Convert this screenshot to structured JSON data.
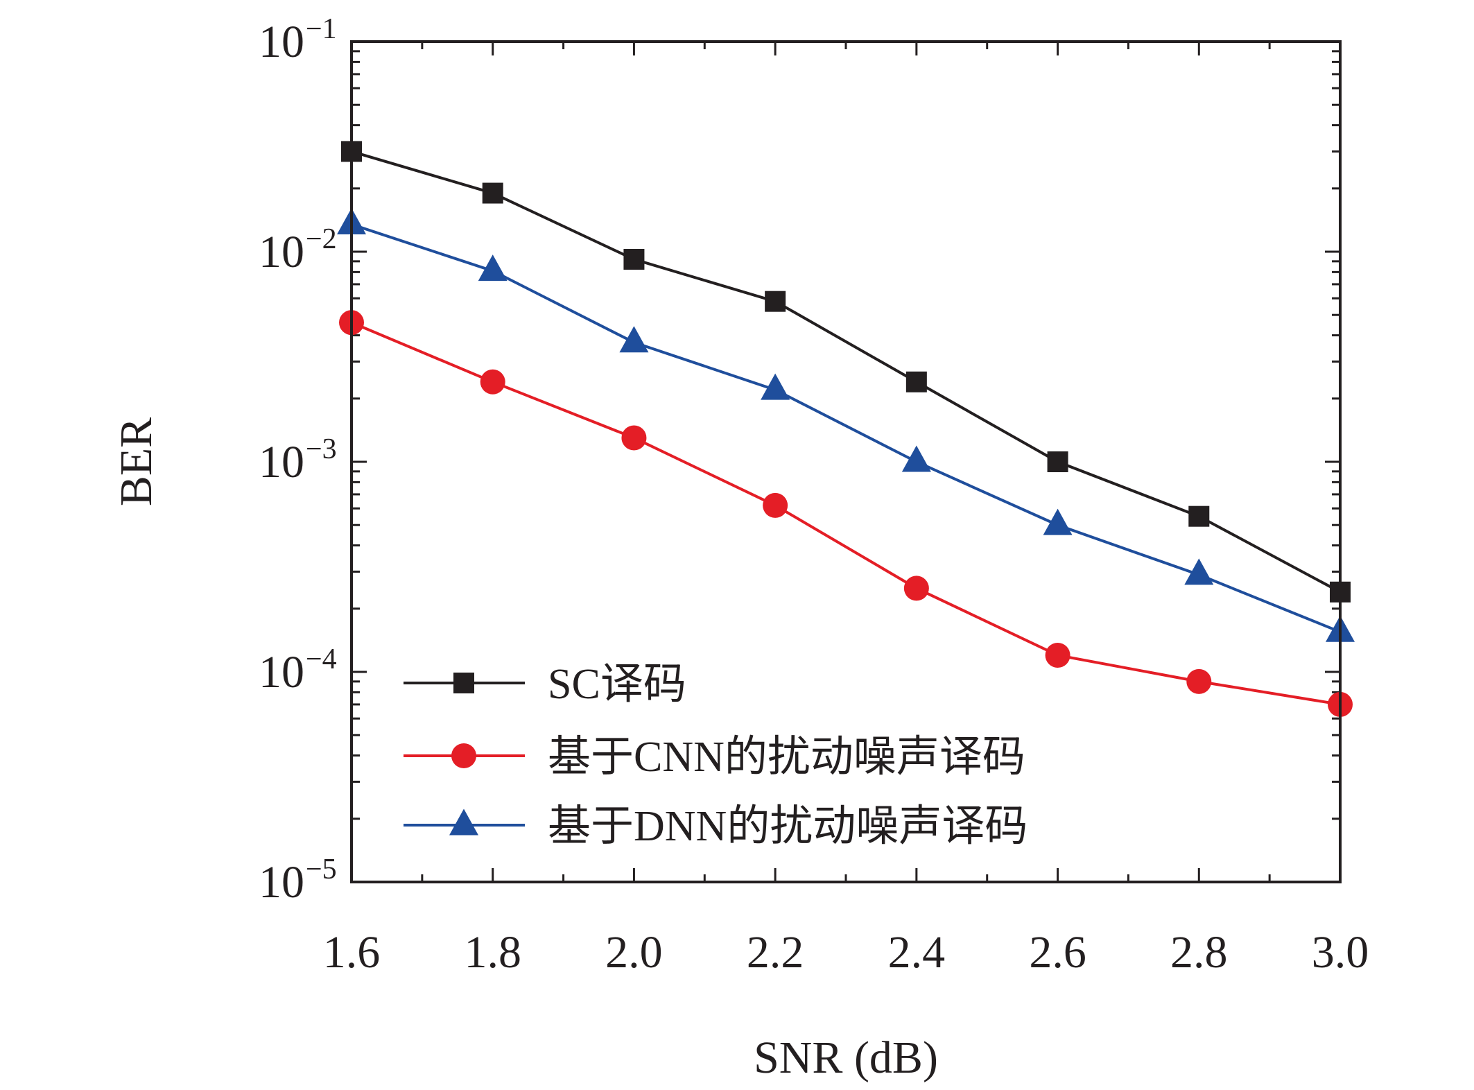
{
  "chart_data": {
    "type": "line",
    "xlabel": "SNR (dB)",
    "ylabel": "BER",
    "x": [
      1.6,
      1.8,
      2.0,
      2.2,
      2.4,
      2.6,
      2.8,
      3.0
    ],
    "x_tick_labels": [
      "1.6",
      "1.8",
      "2.0",
      "2.2",
      "2.4",
      "2.6",
      "2.8",
      "3.0"
    ],
    "xlim": [
      1.6,
      3.0
    ],
    "ylim": [
      1e-05,
      0.1
    ],
    "yscale": "log",
    "y_ticks": [
      {
        "value": 0.1,
        "base": "10",
        "exp": "−1"
      },
      {
        "value": 0.01,
        "base": "10",
        "exp": "−2"
      },
      {
        "value": 0.001,
        "base": "10",
        "exp": "−3"
      },
      {
        "value": 0.0001,
        "base": "10",
        "exp": "−4"
      },
      {
        "value": 1e-05,
        "base": "10",
        "exp": "−5"
      }
    ],
    "grid": false,
    "legend_position": "bottom-left",
    "series": [
      {
        "name": "SC译码",
        "color": "#231f20",
        "marker": "square",
        "values": [
          0.03,
          0.019,
          0.0092,
          0.0058,
          0.0024,
          0.001,
          0.00055,
          0.00024
        ]
      },
      {
        "name": "基于CNN的扰动噪声译码",
        "color": "#e41e26",
        "marker": "circle",
        "values": [
          0.0046,
          0.0024,
          0.0013,
          0.00062,
          0.00025,
          0.00012,
          9e-05,
          7e-05
        ]
      },
      {
        "name": "基于DNN的扰动噪声译码",
        "color": "#1f4e9c",
        "marker": "triangle",
        "values": [
          0.0135,
          0.0081,
          0.0037,
          0.0022,
          0.001,
          0.0005,
          0.00029,
          0.000155
        ]
      }
    ]
  }
}
